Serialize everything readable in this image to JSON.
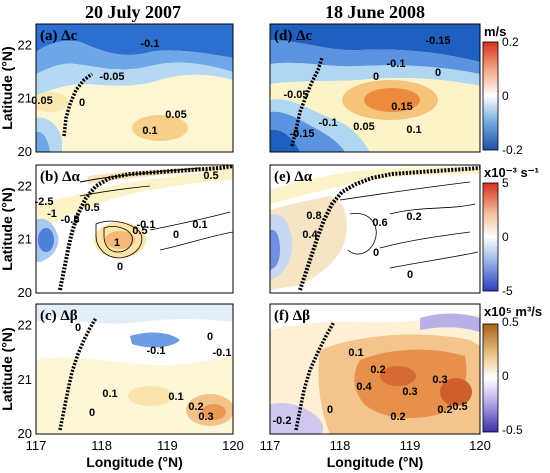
{
  "columns": [
    "20 July 2007",
    "18 June 2008"
  ],
  "colors": {
    "blue_dark": "#1f5fbf",
    "blue_mid": "#4f8fe0",
    "blue_light": "#a8d2f0",
    "yellow_light": "#fbf3c7",
    "orange": "#f0b45a",
    "red": "#e0552c",
    "tan_light": "#f5ddb0",
    "tan": "#e6a35c",
    "purple_light": "#c9c0ea"
  },
  "chart_data": [
    {
      "type": "heatmap",
      "panel": "a",
      "label": "(a) Δc",
      "xlim": [
        117,
        120
      ],
      "ylim": [
        20,
        22.4
      ],
      "contour_labels": [
        "-0.1",
        "-0.05",
        "0.05",
        "0",
        "0.05",
        "0.1"
      ],
      "ylabel": "Latitude (°N)",
      "yticks": [
        "20",
        "21",
        "22"
      ],
      "xticks": []
    },
    {
      "type": "heatmap",
      "panel": "d",
      "label": "(d) Δc",
      "xlim": [
        117,
        120
      ],
      "ylim": [
        20,
        22.4
      ],
      "contour_labels": [
        "-0.15",
        "-0.1",
        "0",
        "-0.05",
        "0.15",
        "-0.15",
        "-0.1",
        "0.05",
        "0.1",
        "0"
      ],
      "colorbar": {
        "unit": "m/s",
        "ticks": [
          "0.2",
          "0",
          "-0.2"
        ],
        "range": [
          -0.2,
          0.2
        ]
      }
    },
    {
      "type": "heatmap",
      "panel": "b",
      "label": "(b) Δα",
      "xlim": [
        117,
        120
      ],
      "ylim": [
        20,
        22.4
      ],
      "contour_labels": [
        "0.5",
        "-2.5",
        "-1",
        "-0.5",
        "0.5",
        "1",
        "0.5",
        "-0.1",
        "0",
        "0",
        "0.1"
      ],
      "ylabel": "Latitude (°N)",
      "yticks": [
        "20",
        "21",
        "22"
      ]
    },
    {
      "type": "heatmap",
      "panel": "e",
      "label": "(e) Δα",
      "xlim": [
        117,
        120
      ],
      "ylim": [
        20,
        22.4
      ],
      "contour_labels": [
        "0.4",
        "0.8",
        "0.6",
        "0.2",
        "0",
        "0"
      ],
      "colorbar": {
        "unit": "x10⁻³ s⁻¹",
        "ticks": [
          "5",
          "0",
          "-5"
        ],
        "range": [
          -5,
          5
        ]
      }
    },
    {
      "type": "heatmap",
      "panel": "c",
      "label": "(c) Δβ",
      "xlim": [
        117,
        120
      ],
      "ylim": [
        20,
        22.4
      ],
      "contour_labels": [
        "0",
        "-0.1",
        "0",
        "-0.1",
        "0.1",
        "0.1",
        "0.2",
        "0.3",
        "0"
      ],
      "ylabel": "Latitude (°N)",
      "xlabel": "Longitude (°N)",
      "yticks": [
        "20",
        "21",
        "22"
      ],
      "xticks": [
        "117",
        "118",
        "119",
        "120"
      ]
    },
    {
      "type": "heatmap",
      "panel": "f",
      "label": "(f) Δβ",
      "xlim": [
        117,
        120
      ],
      "ylim": [
        20,
        22.4
      ],
      "contour_labels": [
        "0.1",
        "0.2",
        "0.4",
        "0.3",
        "0.3",
        "0.2",
        "0.5",
        "-0.2",
        "0",
        "0.2"
      ],
      "xlabel": "Longitude (°N)",
      "xticks": [
        "117",
        "118",
        "119",
        "120"
      ],
      "colorbar": {
        "unit": "x10⁵ m³/s",
        "ticks": [
          "0.5",
          "0",
          "-0.5"
        ],
        "range": [
          -0.5,
          0.5
        ]
      }
    }
  ]
}
